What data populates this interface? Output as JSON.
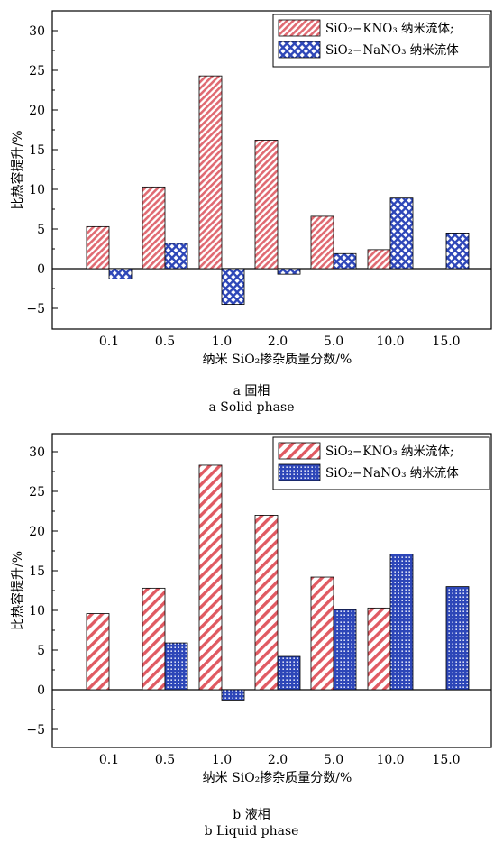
{
  "chart_data": [
    {
      "type": "bar",
      "panel": "a",
      "caption_cn": "a 固相",
      "caption_en": "a Solid phase",
      "xlabel": "纳米 SiO₂掺杂质量分数/%",
      "ylabel": "比热容提升/%",
      "ylim": [
        -7,
        33
      ],
      "yticks": [
        "30",
        "25",
        "20",
        "15",
        "10",
        "5",
        "0",
        "−5"
      ],
      "categories": [
        "0.1",
        "0.5",
        "1.0",
        "2.0",
        "5.0",
        "10.0",
        "15.0"
      ],
      "legend_position": "top-right",
      "series": [
        {
          "name": "SiO₂−KNO₃ 纳米流体;",
          "color": "#e8838a",
          "pattern": "diagonal-hatch",
          "values": [
            5.3,
            10.3,
            24.3,
            16.2,
            6.6,
            2.4,
            null
          ]
        },
        {
          "name": "SiO₂−NaNO₃ 纳米流体",
          "color": "#2d46b8",
          "pattern": "crosshatch",
          "values": [
            -1.3,
            3.2,
            -4.5,
            -0.7,
            1.9,
            8.9,
            4.5
          ]
        }
      ]
    },
    {
      "type": "bar",
      "panel": "b",
      "caption_cn": "b 液相",
      "caption_en": "b Liquid phase",
      "xlabel": "纳米 SiO₂掺杂质量分数/%",
      "ylabel": "比热容提升/%",
      "ylim": [
        -7,
        33
      ],
      "yticks": [
        "30",
        "25",
        "20",
        "15",
        "10",
        "5",
        "0",
        "−5"
      ],
      "categories": [
        "0.1",
        "0.5",
        "1.0",
        "2.0",
        "5.0",
        "10.0",
        "15.0"
      ],
      "legend_position": "top-right",
      "series": [
        {
          "name": "SiO₂−KNO₃ 纳米流体;",
          "color": "#e05a62",
          "pattern": "diagonal-stripes",
          "values": [
            9.6,
            12.8,
            28.3,
            22.0,
            14.2,
            10.3,
            null
          ]
        },
        {
          "name": "SiO₂−NaNO₃ 纳米流体",
          "color": "#2d46b8",
          "pattern": "grid",
          "values": [
            null,
            5.9,
            -1.3,
            4.2,
            10.1,
            17.1,
            13.0
          ]
        }
      ]
    }
  ]
}
